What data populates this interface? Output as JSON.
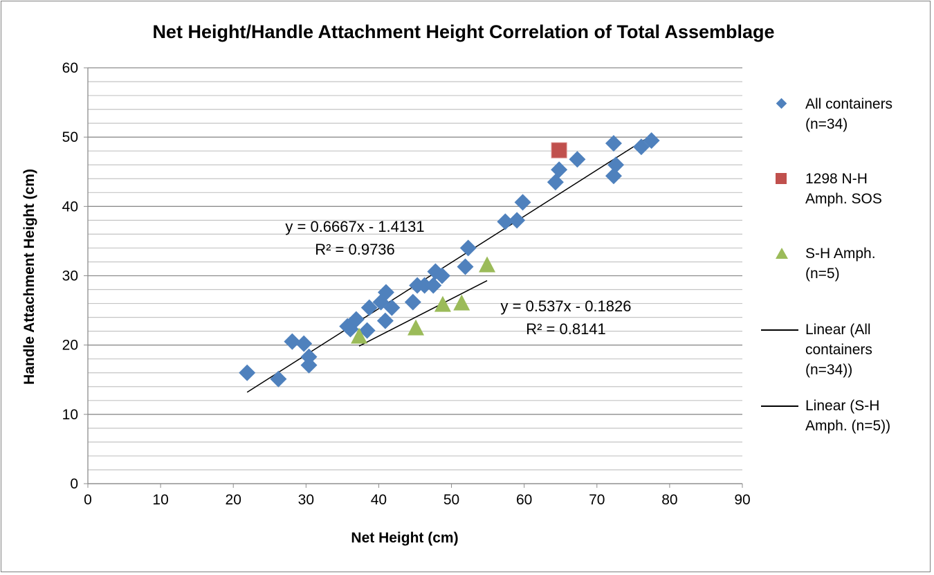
{
  "chart_data": {
    "type": "scatter",
    "title": "Net Height/Handle Attachment Height Correlation of Total Assemblage",
    "xlabel": "Net Height (cm)",
    "ylabel": "Handle Attachment Height (cm)",
    "xlim": [
      0,
      90
    ],
    "ylim": [
      0,
      60
    ],
    "xticks": [
      "0",
      "10",
      "20",
      "30",
      "40",
      "50",
      "60",
      "70",
      "80",
      "90"
    ],
    "yticks": [
      "0",
      "10",
      "20",
      "30",
      "40",
      "50",
      "60"
    ],
    "grid": "horizontal, minor every 2",
    "legend_position": "right",
    "series": [
      {
        "name": "All containers (n=34)",
        "legend_lines": [
          "All containers",
          "(n=34)"
        ],
        "marker": "diamond",
        "color": "#4F81BD",
        "points": [
          [
            21.9,
            16.0
          ],
          [
            26.2,
            15.1
          ],
          [
            28.1,
            20.5
          ],
          [
            29.7,
            20.2
          ],
          [
            30.4,
            18.3
          ],
          [
            30.4,
            17.1
          ],
          [
            35.7,
            22.7
          ],
          [
            36.1,
            22.3
          ],
          [
            36.9,
            23.7
          ],
          [
            38.4,
            22.1
          ],
          [
            38.7,
            25.4
          ],
          [
            40.3,
            26.2
          ],
          [
            40.9,
            23.5
          ],
          [
            41.0,
            27.6
          ],
          [
            41.8,
            25.4
          ],
          [
            44.7,
            26.2
          ],
          [
            45.3,
            28.6
          ],
          [
            46.3,
            28.6
          ],
          [
            47.5,
            28.6
          ],
          [
            47.8,
            30.6
          ],
          [
            48.7,
            30.0
          ],
          [
            51.9,
            31.3
          ],
          [
            52.3,
            34.0
          ],
          [
            57.4,
            37.8
          ],
          [
            59.0,
            38.0
          ],
          [
            59.8,
            40.6
          ],
          [
            64.3,
            43.5
          ],
          [
            64.8,
            45.3
          ],
          [
            67.3,
            46.8
          ],
          [
            72.3,
            49.1
          ],
          [
            72.6,
            46.0
          ],
          [
            72.3,
            44.4
          ],
          [
            76.1,
            48.6
          ],
          [
            77.5,
            49.5
          ]
        ]
      },
      {
        "name": "1298 N-H Amph. SOS",
        "legend_lines": [
          "1298 N-H",
          "Amph. SOS"
        ],
        "marker": "square",
        "color": "#C0504D",
        "points": [
          [
            64.8,
            48.1
          ]
        ]
      },
      {
        "name": "S-H Amph. (n=5)",
        "legend_lines": [
          "S-H Amph.",
          "(n=5)"
        ],
        "marker": "triangle",
        "color": "#9BBB59",
        "points": [
          [
            37.3,
            21.2
          ],
          [
            45.1,
            22.4
          ],
          [
            48.8,
            25.8
          ],
          [
            51.4,
            26.0
          ],
          [
            54.9,
            31.5
          ]
        ]
      }
    ],
    "trendlines": [
      {
        "name": "Linear (All containers (n=34))",
        "legend_lines": [
          "Linear (All",
          "containers",
          "(n=34))"
        ],
        "slope": 0.6667,
        "intercept": -1.4131,
        "x_range": [
          21.9,
          77.5
        ],
        "equation": "y = 0.6667x - 1.4131",
        "r2": "R² = 0.9736",
        "color": "#000000"
      },
      {
        "name": "Linear (S-H Amph. (n=5))",
        "legend_lines": [
          "Linear (S-H",
          "Amph. (n=5))"
        ],
        "slope": 0.537,
        "intercept": -0.1826,
        "x_range": [
          37.3,
          54.9
        ],
        "equation": "y = 0.537x - 0.1826",
        "r2": "R² = 0.8141",
        "color": "#000000"
      }
    ]
  }
}
